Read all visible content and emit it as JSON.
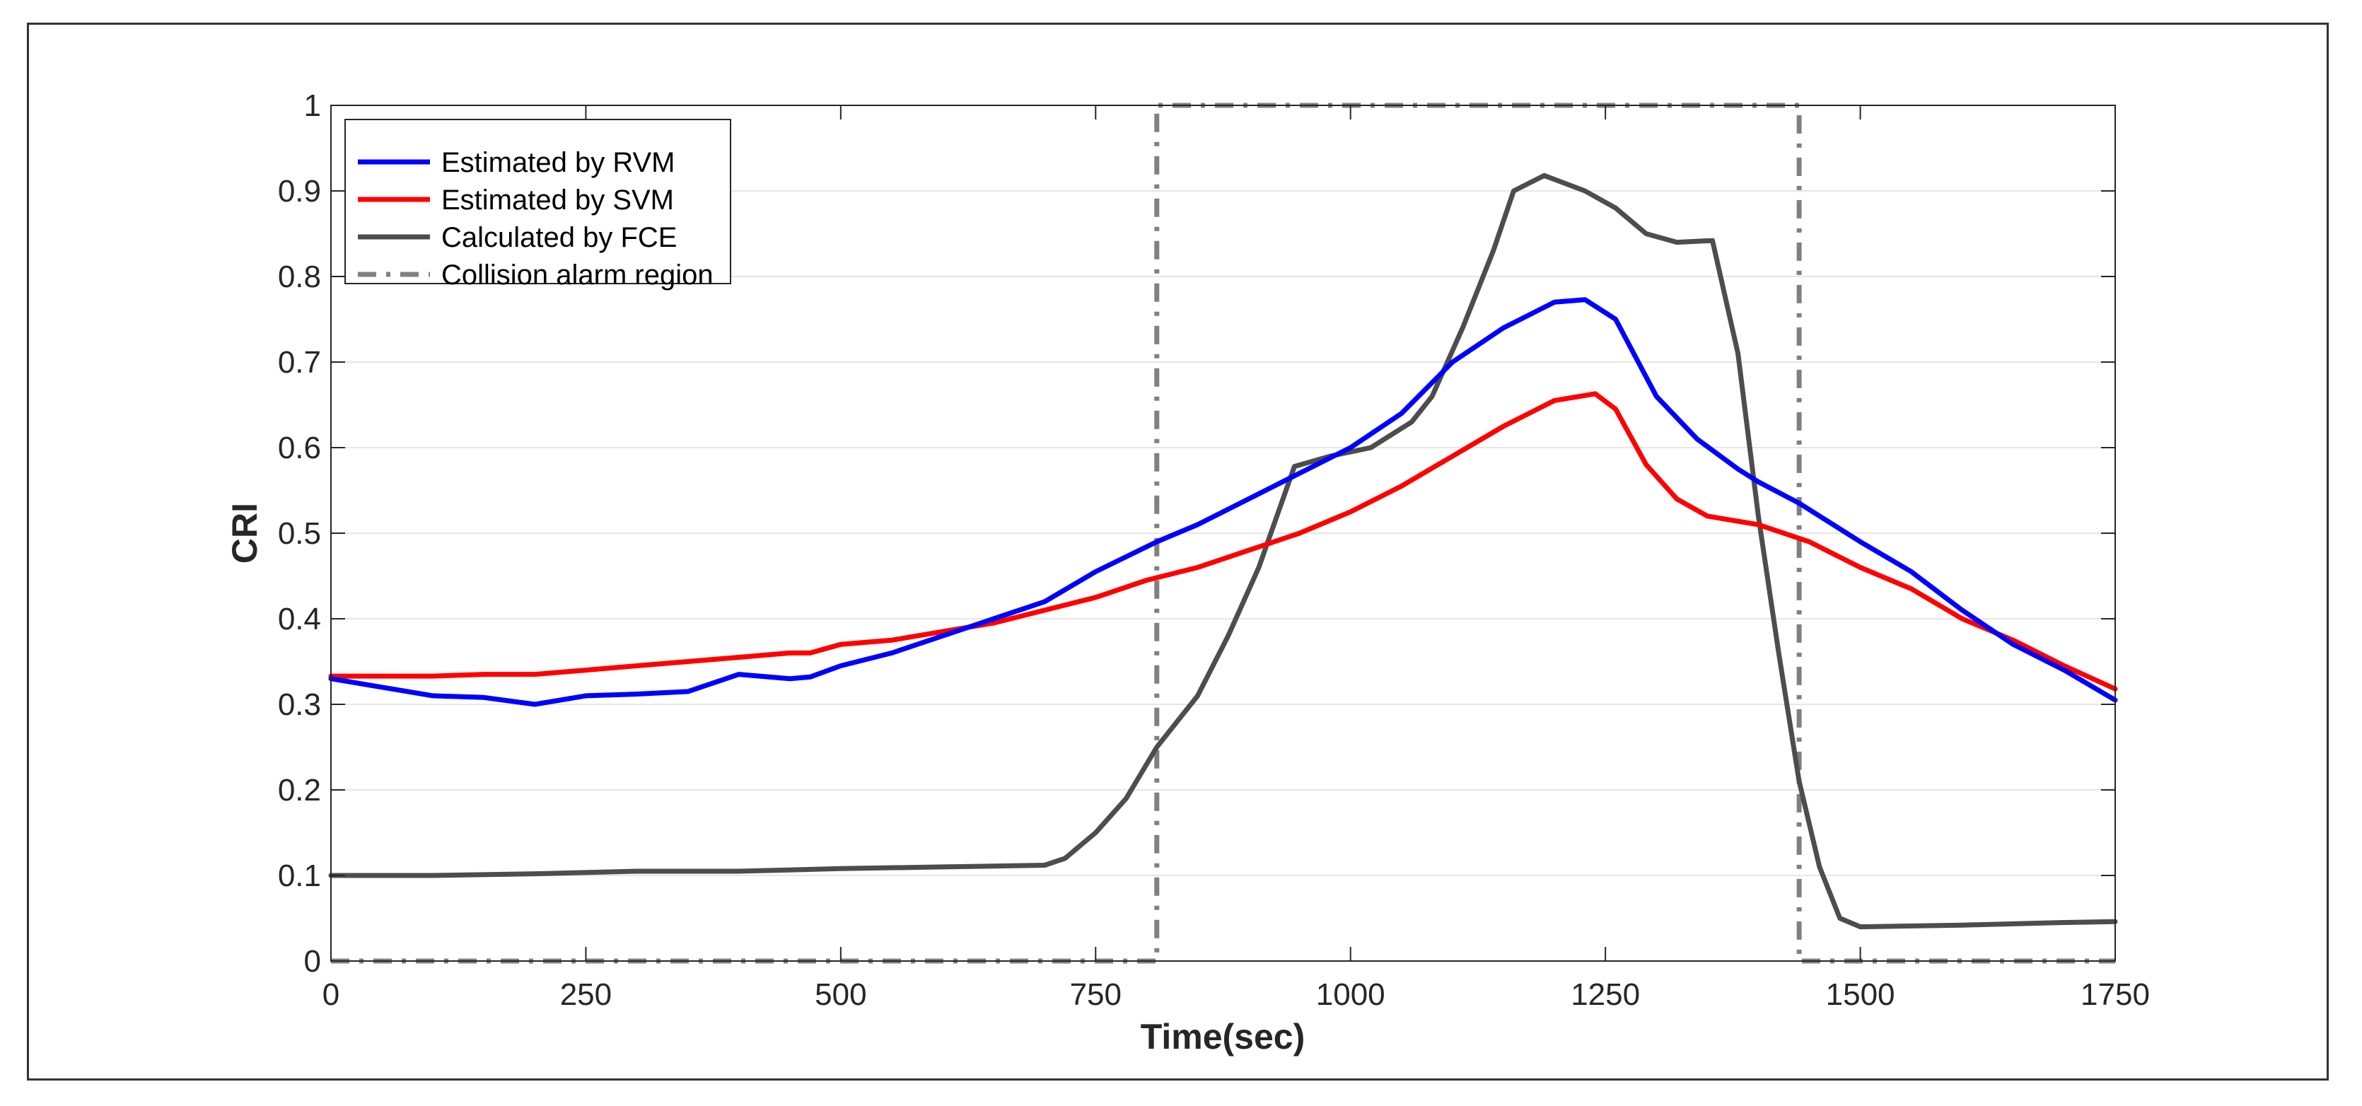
{
  "chart_data": {
    "type": "line",
    "title": "",
    "xlabel": "Time(sec)",
    "ylabel": "CRI",
    "xlim": [
      0,
      1750
    ],
    "ylim": [
      0,
      1
    ],
    "grid": "horizontal",
    "xticks": [
      0,
      250,
      500,
      750,
      1000,
      1250,
      1500,
      1750
    ],
    "xtick_labels": [
      "0",
      "250",
      "500",
      "750",
      "1000",
      "1250",
      "1500",
      "1750"
    ],
    "yticks": [
      0,
      0.1,
      0.2,
      0.3,
      0.4,
      0.5,
      0.6,
      0.7,
      0.8,
      0.9,
      1
    ],
    "ytick_labels": [
      "0",
      "0.1",
      "0.2",
      "0.3",
      "0.4",
      "0.5",
      "0.6",
      "0.7",
      "0.8",
      "0.9",
      "1"
    ],
    "legend_position": "top-left",
    "series": [
      {
        "name": "Estimated by RVM",
        "color": "#0000ff",
        "style": "solid",
        "points": [
          [
            0,
            0.33
          ],
          [
            50,
            0.32
          ],
          [
            100,
            0.31
          ],
          [
            150,
            0.308
          ],
          [
            200,
            0.3
          ],
          [
            250,
            0.31
          ],
          [
            300,
            0.312
          ],
          [
            350,
            0.315
          ],
          [
            400,
            0.335
          ],
          [
            450,
            0.33
          ],
          [
            470,
            0.332
          ],
          [
            500,
            0.345
          ],
          [
            550,
            0.36
          ],
          [
            600,
            0.38
          ],
          [
            650,
            0.4
          ],
          [
            700,
            0.42
          ],
          [
            750,
            0.455
          ],
          [
            810,
            0.49
          ],
          [
            850,
            0.51
          ],
          [
            900,
            0.54
          ],
          [
            950,
            0.57
          ],
          [
            1000,
            0.6
          ],
          [
            1050,
            0.64
          ],
          [
            1100,
            0.7
          ],
          [
            1150,
            0.74
          ],
          [
            1200,
            0.77
          ],
          [
            1230,
            0.773
          ],
          [
            1260,
            0.75
          ],
          [
            1300,
            0.66
          ],
          [
            1340,
            0.61
          ],
          [
            1380,
            0.575
          ],
          [
            1400,
            0.56
          ],
          [
            1440,
            0.535
          ],
          [
            1500,
            0.49
          ],
          [
            1550,
            0.455
          ],
          [
            1600,
            0.41
          ],
          [
            1650,
            0.37
          ],
          [
            1700,
            0.34
          ],
          [
            1750,
            0.305
          ]
        ]
      },
      {
        "name": "Estimated by SVM",
        "color": "#ff0000",
        "style": "solid",
        "points": [
          [
            0,
            0.333
          ],
          [
            50,
            0.333
          ],
          [
            100,
            0.333
          ],
          [
            150,
            0.335
          ],
          [
            200,
            0.335
          ],
          [
            250,
            0.34
          ],
          [
            300,
            0.345
          ],
          [
            350,
            0.35
          ],
          [
            400,
            0.355
          ],
          [
            450,
            0.36
          ],
          [
            470,
            0.36
          ],
          [
            500,
            0.37
          ],
          [
            550,
            0.375
          ],
          [
            600,
            0.385
          ],
          [
            650,
            0.395
          ],
          [
            700,
            0.41
          ],
          [
            750,
            0.425
          ],
          [
            800,
            0.445
          ],
          [
            850,
            0.46
          ],
          [
            900,
            0.48
          ],
          [
            950,
            0.5
          ],
          [
            1000,
            0.525
          ],
          [
            1050,
            0.555
          ],
          [
            1100,
            0.59
          ],
          [
            1150,
            0.625
          ],
          [
            1200,
            0.655
          ],
          [
            1240,
            0.663
          ],
          [
            1260,
            0.645
          ],
          [
            1290,
            0.58
          ],
          [
            1320,
            0.54
          ],
          [
            1350,
            0.52
          ],
          [
            1400,
            0.51
          ],
          [
            1450,
            0.49
          ],
          [
            1500,
            0.46
          ],
          [
            1550,
            0.435
          ],
          [
            1600,
            0.4
          ],
          [
            1650,
            0.375
          ],
          [
            1700,
            0.345
          ],
          [
            1750,
            0.318
          ]
        ]
      },
      {
        "name": "Calculated by FCE",
        "color": "#4d4d4d",
        "style": "solid",
        "points": [
          [
            0,
            0.1
          ],
          [
            100,
            0.1
          ],
          [
            200,
            0.102
          ],
          [
            300,
            0.105
          ],
          [
            400,
            0.105
          ],
          [
            500,
            0.108
          ],
          [
            600,
            0.11
          ],
          [
            700,
            0.112
          ],
          [
            720,
            0.12
          ],
          [
            750,
            0.15
          ],
          [
            780,
            0.19
          ],
          [
            810,
            0.25
          ],
          [
            850,
            0.31
          ],
          [
            880,
            0.38
          ],
          [
            910,
            0.46
          ],
          [
            945,
            0.578
          ],
          [
            980,
            0.59
          ],
          [
            1020,
            0.6
          ],
          [
            1060,
            0.63
          ],
          [
            1080,
            0.66
          ],
          [
            1110,
            0.74
          ],
          [
            1140,
            0.83
          ],
          [
            1160,
            0.9
          ],
          [
            1190,
            0.918
          ],
          [
            1230,
            0.9
          ],
          [
            1260,
            0.88
          ],
          [
            1290,
            0.85
          ],
          [
            1320,
            0.84
          ],
          [
            1355,
            0.842
          ],
          [
            1380,
            0.71
          ],
          [
            1400,
            0.52
          ],
          [
            1420,
            0.36
          ],
          [
            1440,
            0.21
          ],
          [
            1460,
            0.11
          ],
          [
            1480,
            0.05
          ],
          [
            1500,
            0.04
          ],
          [
            1600,
            0.042
          ],
          [
            1700,
            0.045
          ],
          [
            1750,
            0.046
          ]
        ]
      },
      {
        "name": "Collision alarm region",
        "color": "#808080",
        "style": "dash-dot",
        "points": [
          [
            0,
            0
          ],
          [
            810,
            0
          ],
          [
            810,
            1
          ],
          [
            1440,
            1
          ],
          [
            1440,
            0
          ],
          [
            1750,
            0
          ]
        ]
      }
    ]
  }
}
